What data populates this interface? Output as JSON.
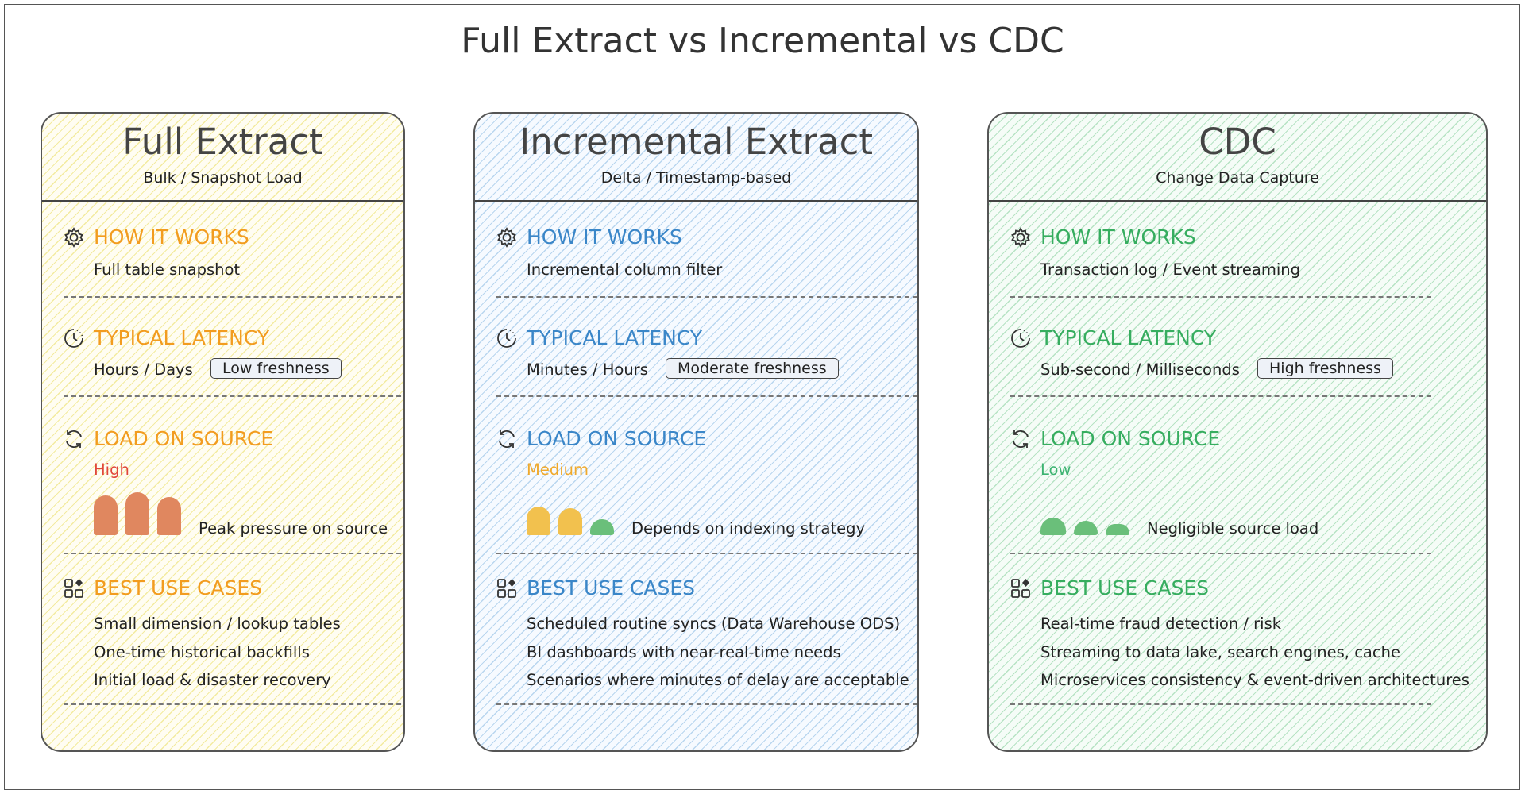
{
  "title": "Full Extract vs Incremental vs CDC",
  "columns": [
    {
      "title": "Full Extract",
      "subtitle": "Bulk / Snapshot Load",
      "how_it_works": {
        "heading": "HOW IT WORKS",
        "text": "Full table snapshot"
      },
      "latency": {
        "heading": "TYPICAL LATENCY",
        "text": "Hours / Days",
        "badge": "Low freshness"
      },
      "load": {
        "heading": "LOAD ON SOURCE",
        "level": "High",
        "note": "Peak pressure on source"
      },
      "use_cases": {
        "heading": "BEST USE CASES",
        "items": [
          "Small dimension / lookup tables",
          "One-time historical backfills",
          "Initial load & disaster recovery"
        ]
      }
    },
    {
      "title": "Incremental Extract",
      "subtitle": "Delta / Timestamp-based",
      "how_it_works": {
        "heading": "HOW IT WORKS",
        "text": "Incremental column filter"
      },
      "latency": {
        "heading": "TYPICAL LATENCY",
        "text": "Minutes / Hours",
        "badge": "Moderate freshness"
      },
      "load": {
        "heading": "LOAD ON SOURCE",
        "level": "Medium",
        "note": "Depends on indexing strategy"
      },
      "use_cases": {
        "heading": "BEST USE CASES",
        "items": [
          "Scheduled routine syncs (Data Warehouse ODS)",
          "BI dashboards with near-real-time needs",
          "Scenarios where minutes of delay are acceptable"
        ]
      }
    },
    {
      "title": "CDC",
      "subtitle": "Change Data Capture",
      "how_it_works": {
        "heading": "HOW IT WORKS",
        "text": "Transaction log / Event streaming"
      },
      "latency": {
        "heading": "TYPICAL LATENCY",
        "text": "Sub-second / Milliseconds",
        "badge": "High freshness"
      },
      "load": {
        "heading": "LOAD ON SOURCE",
        "level": "Low",
        "note": "Negligible source load"
      },
      "use_cases": {
        "heading": "BEST USE CASES",
        "items": [
          "Real-time fraud detection / risk",
          "Streaming to data lake, search engines, cache",
          "Microservices consistency & event-driven architectures"
        ]
      }
    }
  ]
}
